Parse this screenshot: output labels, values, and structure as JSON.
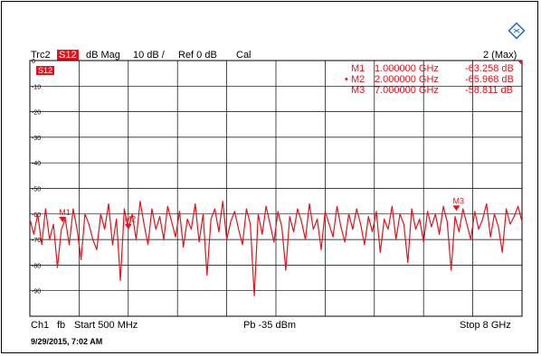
{
  "header": {
    "trace": "Trc2",
    "param": "S12",
    "format": "dB Mag",
    "scale": "10 dB /",
    "ref": "Ref 0 dB",
    "cal": "Cal",
    "max_label": "2 (Max)",
    "trace_badge": "S12"
  },
  "markers": [
    {
      "name": "M1",
      "freq": "1.000000 GHz",
      "value": "-63.258 dB",
      "active": false
    },
    {
      "name": "M2",
      "freq": "2.000000 GHz",
      "value": "-65.968 dB",
      "active": true
    },
    {
      "name": "M3",
      "freq": "7.000000 GHz",
      "value": "-58.811 dB",
      "active": false
    }
  ],
  "footer": {
    "channel": "Ch1",
    "fb": "fb",
    "start": "Start 500 MHz",
    "power": "Pb  -35 dBm",
    "stop": "Stop 8 GHz",
    "timestamp": "9/29/2015, 7:02 AM"
  },
  "colors": {
    "trace": "#e8101a",
    "grid": "#000000",
    "logo": "#1a6fc4"
  },
  "chart_data": {
    "type": "line",
    "xlim": [
      0.5,
      8.0
    ],
    "ylim": [
      -100,
      0
    ],
    "y_ticks": [
      0,
      -10,
      -20,
      -30,
      -40,
      -50,
      -60,
      -70,
      -80,
      -90
    ],
    "y_tick_labels": [
      "0",
      "-10",
      "-20",
      "-30",
      "-40",
      "-50",
      "-60",
      "-70",
      "-80",
      "-90"
    ],
    "marker_points": [
      {
        "label": "M1",
        "x": 1.0,
        "y": -63.258
      },
      {
        "label": "M2",
        "x": 2.0,
        "y": -65.968
      },
      {
        "label": "M3",
        "x": 7.0,
        "y": -58.811
      }
    ],
    "series": [
      {
        "x": [
          0.5,
          0.56,
          0.62,
          0.68,
          0.74,
          0.8,
          0.86,
          0.92,
          0.98,
          1.04,
          1.1,
          1.16,
          1.22,
          1.28,
          1.34,
          1.4,
          1.46,
          1.52,
          1.58,
          1.64,
          1.7,
          1.76,
          1.82,
          1.88,
          1.94,
          2.0,
          2.06,
          2.12,
          2.18,
          2.24,
          2.3,
          2.36,
          2.42,
          2.48,
          2.54,
          2.6,
          2.66,
          2.72,
          2.78,
          2.84,
          2.9,
          2.96,
          3.02,
          3.08,
          3.14,
          3.2,
          3.26,
          3.32,
          3.38,
          3.44,
          3.5,
          3.56,
          3.62,
          3.68,
          3.74,
          3.8,
          3.86,
          3.92,
          3.98,
          4.04,
          4.1,
          4.16,
          4.22,
          4.28,
          4.34,
          4.4,
          4.46,
          4.52,
          4.58,
          4.64,
          4.7,
          4.76,
          4.82,
          4.88,
          4.94,
          5.0,
          5.06,
          5.12,
          5.18,
          5.24,
          5.3,
          5.36,
          5.42,
          5.48,
          5.54,
          5.6,
          5.66,
          5.72,
          5.78,
          5.84,
          5.9,
          5.96,
          6.02,
          6.08,
          6.14,
          6.2,
          6.26,
          6.32,
          6.38,
          6.44,
          6.5,
          6.56,
          6.62,
          6.68,
          6.74,
          6.8,
          6.86,
          6.92,
          6.98,
          7.04,
          7.1,
          7.16,
          7.22,
          7.28,
          7.34,
          7.4,
          7.46,
          7.52,
          7.58,
          7.64,
          7.7,
          7.76,
          7.82,
          7.88,
          7.94,
          8.0
        ],
        "y": [
          -62,
          -68,
          -60,
          -72,
          -58,
          -70,
          -64,
          -81,
          -66,
          -62,
          -72,
          -58,
          -66,
          -78,
          -60,
          -64,
          -70,
          -74,
          -60,
          -66,
          -56,
          -72,
          -62,
          -86,
          -58,
          -66,
          -60,
          -70,
          -55,
          -64,
          -72,
          -58,
          -66,
          -61,
          -70,
          -57,
          -63,
          -69,
          -59,
          -73,
          -62,
          -66,
          -56,
          -71,
          -60,
          -84,
          -62,
          -58,
          -67,
          -55,
          -70,
          -63,
          -59,
          -66,
          -72,
          -58,
          -64,
          -92,
          -60,
          -68,
          -57,
          -64,
          -71,
          -59,
          -65,
          -82,
          -61,
          -67,
          -58,
          -63,
          -70,
          -56,
          -66,
          -62,
          -74,
          -59,
          -64,
          -69,
          -57,
          -65,
          -71,
          -60,
          -66,
          -58,
          -64,
          -72,
          -61,
          -67,
          -59,
          -75,
          -62,
          -66,
          -57,
          -70,
          -60,
          -64,
          -79,
          -58,
          -66,
          -62,
          -71,
          -59,
          -65,
          -60,
          -68,
          -57,
          -63,
          -82,
          -61,
          -67,
          -58,
          -64,
          -70,
          -59,
          -66,
          -62,
          -56,
          -69,
          -60,
          -65,
          -75,
          -58,
          -64,
          -61,
          -57,
          -63
        ]
      }
    ]
  }
}
